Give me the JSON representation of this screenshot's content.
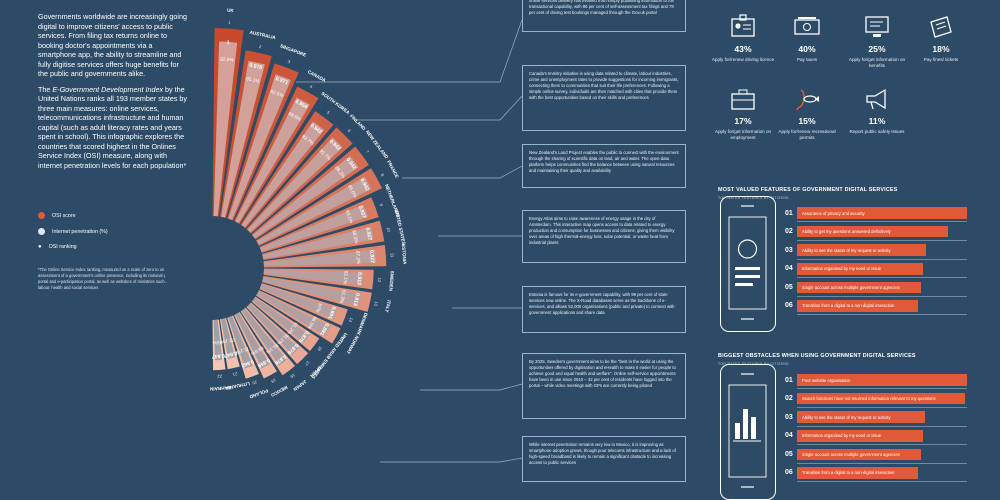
{
  "intro": {
    "paragraph1": "Governments worldwide are increasingly going digital to improve citizens' access to public services. From filing tax returns online to booking doctor's appointments via a smartphone app, the ability to streamline and fully digitise services offers huge benefits for the public and governments alike.",
    "paragraph2_lead": "The ",
    "paragraph2_italic": "E-Government Development Index",
    "paragraph2_rest": " by the United Nations ranks all 193 member states by three main measures: online services, telecommunications infrastructure and human capital (such as adult literacy rates and years spent in school). This infographic explores the countries that scored highest in the Onlines Service Index (OSI) measure, along with internet penetration levels for each population*"
  },
  "legend": {
    "osi": "OSI score",
    "internet": "Internet penetration (%)",
    "ranking": "OSI ranking"
  },
  "footnote": "*The Online Service Index ranking, measured on a scale of zero to one, is an assessment of a government's online presence, including its national portal, e-services portal and e-participation portal, as well as websites of ministries such as education, labour, health and social services",
  "colors": {
    "background": "#2d4a66",
    "osi_dark": "#c74a2d",
    "osi_light": "#f2c8b4",
    "internet_light": "#dfe8f1",
    "internet_dark": "#5c7c9c",
    "accent": "#e05a3a"
  },
  "chart_data": {
    "type": "radial bar",
    "series": [
      {
        "name": "OSI score"
      },
      {
        "name": "Internet penetration (%)"
      }
    ],
    "countries": [
      {
        "name": "UK",
        "rank": "1",
        "osi": "1",
        "internet": "92.6%"
      },
      {
        "name": "AUSTRALIA",
        "rank": "2",
        "osi": "0.978",
        "internet": "85.1%"
      },
      {
        "name": "SINGAPORE",
        "rank": "3",
        "osi": "0.971",
        "internet": "82.5%"
      },
      {
        "name": "CANADA",
        "rank": "4",
        "osi": "0.956",
        "internet": "88.5%"
      },
      {
        "name": "SOUTH KOREA",
        "rank": "5",
        "osi": "0.942",
        "internet": "92.7%"
      },
      {
        "name": "FINLAND",
        "rank": "6",
        "osi": "0.942",
        "internet": "92.7%"
      },
      {
        "name": "NEW ZEALAND",
        "rank": "7",
        "osi": "0.942",
        "internet": "88.2%"
      },
      {
        "name": "FRANCE",
        "rank": "8",
        "osi": "0.942",
        "internet": "85.6%"
      },
      {
        "name": "NETHERLANDS",
        "rank": "9",
        "osi": "0.927",
        "internet": "93.1%"
      },
      {
        "name": "UNITED STATES",
        "rank": "10",
        "osi": "0.927",
        "internet": "88.5%"
      },
      {
        "name": "ESTONIA",
        "rank": "11",
        "osi": "0.927",
        "internet": "87.2%"
      },
      {
        "name": "SWEDEN",
        "rank": "12",
        "osi": "0.913",
        "internet": "92.1%"
      },
      {
        "name": "ITALY",
        "rank": "13",
        "osi": "0.913",
        "internet": "61.3%"
      },
      {
        "name": "DENMARK",
        "rank": "14",
        "osi": "0.891",
        "internet": "97%"
      },
      {
        "name": "NORWAY",
        "rank": "15",
        "osi": "0.891",
        "internet": "96.5%"
      },
      {
        "name": "UNITED ARAB EMIRATES",
        "rank": "16",
        "osi": "0.876",
        "internet": "91.2%"
      },
      {
        "name": "SPAIN",
        "rank": "17",
        "osi": "0.876",
        "internet": "91.1%"
      },
      {
        "name": "JAPAN",
        "rank": "18",
        "osi": "0.876",
        "internet": "91.1%"
      },
      {
        "name": "MEXICO",
        "rank": "19",
        "osi": "0.869",
        "internet": "68.6%"
      },
      {
        "name": "POLAND",
        "rank": "20",
        "osi": "0.862",
        "internet": "72.1%"
      },
      {
        "name": "LITHUANIA",
        "rank": "21",
        "osi": "0.847",
        "internet": "72.1%"
      },
      {
        "name": "BAHRAIN",
        "rank": "22",
        "osi": "0.847",
        "internet": "45%"
      }
    ]
  },
  "callouts": [
    "online services delivery has evolved from simply publishing information to full transactional capability, with 86 per cent of self-assessment tax filings and 78 per cent of driving test bookings managed through the Gov.uk portal",
    "Canada's Immitry initiative is using data related to climate, labour industries, crime and unemployment rates to provide suggestions for incoming immigrants, connecting them to communities that suit their life preferences. Following a simple online survey, individuals are then matched with cities that provide them with the best opportunities based on their skills and preferences",
    "New Zealand's Land Project enables the public to connect with the environment through the sharing of scientific data on land, air and water. The open-data platform helps communities find the balance between using natural resources and maintaining their quality and availability",
    "Energy Atlas aims to raise awareness of energy usage in the city of Amsterdam. This interactive map opens access to data related to energy production and consumption for businesses and citizens, giving them visibility over areas of high thermal-energy loss, solar potential, or waste heat from industrial plants",
    "Estonia is famous for its e-government capability, with 99 per cent of state services now online. The X-Road databases serve as the backbone of e-services, and allows 52,000 organisations (public and private) to connect with government applications and share data",
    "By 2025, Sweden's government aims to be the \"best in the world at using the opportunities offered by digitisation and eHealth to make it easier for people to achieve good and equal health and welfare\". Online self-service appointments have been in use since 2010 – 32 per cent of residents have logged into the portal – while video meetings with GPs are currently being piloted",
    "While internet penetration remains very low in Mexico, it is improving as smartphone adoption grows, though poor telecoms infrastructure and a lack of high-speed broadband is likely to remain a significant obstacle to increasing access to public services"
  ],
  "stats": [
    {
      "pct": "43%",
      "label": "Apply for/renew driving licence",
      "icon": "id-badge-icon"
    },
    {
      "pct": "40%",
      "label": "Pay taxes",
      "icon": "money-icon"
    },
    {
      "pct": "25%",
      "label": "Apply for/get information on benefits",
      "icon": "computer-icon"
    },
    {
      "pct": "18%",
      "label": "Pay fines/ tickets",
      "icon": "ticket-icon"
    },
    {
      "pct": "17%",
      "label": "Apply for/get information on employment",
      "icon": "briefcase-icon"
    },
    {
      "pct": "15%",
      "label": "Apply for/renew recreational permits",
      "icon": "fish-icon"
    },
    {
      "pct": "11%",
      "label": "Report public safety issues",
      "icon": "megaphone-icon"
    }
  ],
  "valued": {
    "title": "MOST VALUED FEATURES OF GOVERNMENT DIGITAL SERVICES",
    "subtitle": "TOP-RATED FEATURES BY CITIZENS",
    "items": [
      {
        "num": "01",
        "text": "Assurance of privacy and security",
        "value": 100
      },
      {
        "num": "02",
        "text": "Ability to get my questions answered definitively",
        "value": 89
      },
      {
        "num": "03",
        "text": "Ability to see the status of my request or activity",
        "value": 76
      },
      {
        "num": "04",
        "text": "Information organised by my need or issue",
        "value": 74
      },
      {
        "num": "05",
        "text": "Single account across multiple government agencies",
        "value": 73
      },
      {
        "num": "06",
        "text": "Transition from a digital to a non-digital interaction",
        "value": 71
      }
    ]
  },
  "obstacles": {
    "title": "BIGGEST OBSTACLES WHEN USING GOVERNMENT DIGITAL SERVICES",
    "subtitle": "TOP-RATED FEATURES BY CITIZENS",
    "items": [
      {
        "num": "01",
        "text": "Poor website organisation",
        "value": 100
      },
      {
        "num": "02",
        "text": "Search functions have not returned information relevant to my questions",
        "value": 99
      },
      {
        "num": "03",
        "text": "Ability to see the status of my request or activity",
        "value": 75
      },
      {
        "num": "04",
        "text": "Information organised by my need or issue",
        "value": 74
      },
      {
        "num": "05",
        "text": "Single account across multiple government agencies",
        "value": 73
      },
      {
        "num": "06",
        "text": "Transition from a digital to a non-digital interaction",
        "value": 71
      }
    ]
  }
}
